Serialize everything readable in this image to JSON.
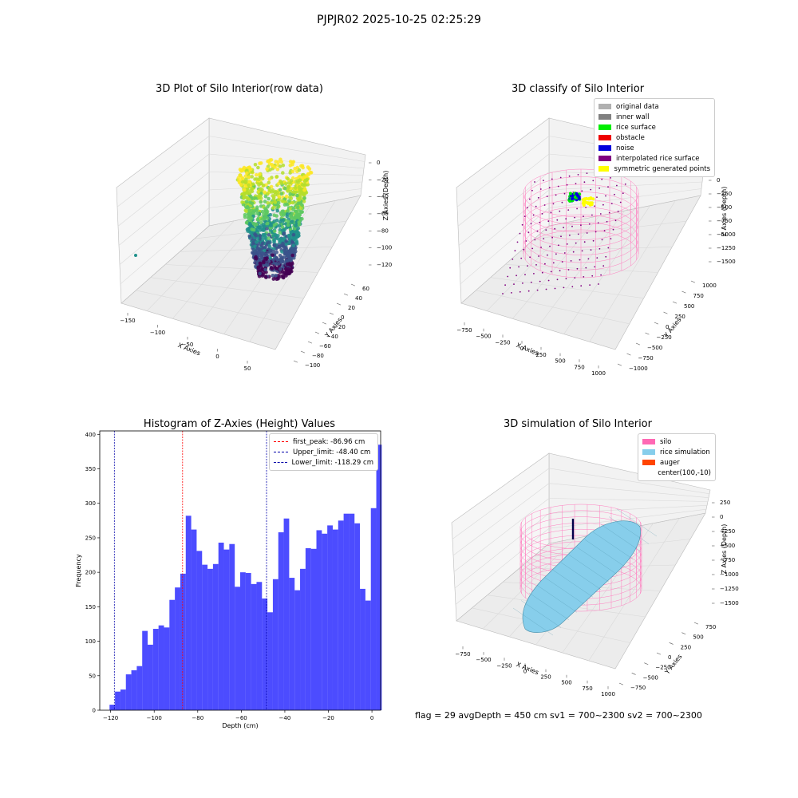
{
  "figure": {
    "suptitle": "PJPJR02 2025-10-25 02:25:29"
  },
  "chart_data": [
    {
      "type": "scatter",
      "title": "3D Plot of Silo Interior(row data)",
      "xlabel": "X Axies",
      "ylabel": "Y Axies",
      "zlabel": "Z Axies (Depth)",
      "xticks": [
        "−150",
        "−100",
        "−50",
        "0",
        "50"
      ],
      "yticks": [
        "−100",
        "−80",
        "−60",
        "−40",
        "−20",
        "0",
        "20",
        "40",
        "60"
      ],
      "zticks": [
        "0",
        "−20",
        "−40",
        "−60",
        "−80",
        "−100",
        "−120"
      ],
      "colormap": "viridis",
      "zlim": [
        -130,
        0
      ]
    },
    {
      "type": "scatter",
      "title": "3D classify of Silo Interior",
      "xlabel": "X Axies",
      "ylabel": "Y Axies",
      "zlabel": "Z Axies (Depth)",
      "xticks": [
        "−750",
        "−500",
        "−250",
        "0",
        "250",
        "500",
        "750",
        "1000"
      ],
      "yticks": [
        "−1000",
        "−750",
        "−500",
        "−250",
        "0",
        "250",
        "500",
        "750",
        "1000"
      ],
      "zticks": [
        "0",
        "−250",
        "−500",
        "−750",
        "−1000",
        "−1250",
        "−1500"
      ],
      "legend": [
        {
          "label": "original data",
          "color": "#b0b0b0"
        },
        {
          "label": "inner wall",
          "color": "#808080"
        },
        {
          "label": "rice surface",
          "color": "#00ee00"
        },
        {
          "label": "obstacle",
          "color": "#ee0000"
        },
        {
          "label": "noise",
          "color": "#0000dd"
        },
        {
          "label": "interpolated rice surface",
          "color": "#800080"
        },
        {
          "label": "symmetric generated points",
          "color": "#ffff00"
        }
      ]
    },
    {
      "type": "bar",
      "title": "Histogram of Z-Axies (Height) Values",
      "xlabel": "Depth (cm)",
      "ylabel": "Frequency",
      "xlim": [
        -125,
        4
      ],
      "ylim": [
        0,
        405
      ],
      "xticks": [
        -120,
        -100,
        -80,
        -60,
        -40,
        -20,
        0
      ],
      "yticks": [
        0,
        50,
        100,
        150,
        200,
        250,
        300,
        350,
        400
      ],
      "bin_start": -120.5,
      "bin_width": 2.5,
      "values": [
        8,
        27,
        30,
        52,
        58,
        64,
        115,
        95,
        118,
        123,
        120,
        160,
        178,
        198,
        282,
        262,
        231,
        211,
        205,
        212,
        243,
        233,
        241,
        179,
        200,
        199,
        183,
        186,
        162,
        142,
        190,
        258,
        278,
        192,
        174,
        205,
        235,
        234,
        261,
        256,
        268,
        262,
        275,
        285,
        285,
        271,
        176,
        159,
        293,
        385
      ],
      "bar_color": "#0000ff",
      "lines": [
        {
          "label": "first_peak: -86.96 cm",
          "value": -86.96,
          "color": "#ff0000"
        },
        {
          "label": "Upper_limit: -48.40 cm",
          "value": -48.4,
          "color": "#0000aa"
        },
        {
          "label": "Lower_limit: -118.29 cm",
          "value": -118.29,
          "color": "#0000aa"
        }
      ]
    },
    {
      "type": "scatter",
      "title": "3D simulation of Silo Interior",
      "xlabel": "X Axies",
      "ylabel": "Y Axies",
      "zlabel": "Z Axies (Depth)",
      "xticks": [
        "−750",
        "−500",
        "−250",
        "0",
        "250",
        "500",
        "750",
        "1000"
      ],
      "yticks": [
        "−750",
        "−500",
        "−250",
        "0",
        "250",
        "500",
        "750"
      ],
      "zticks": [
        "250",
        "0",
        "−250",
        "−500",
        "−750",
        "−1000",
        "−1250",
        "−1500"
      ],
      "legend": [
        {
          "label": "silo",
          "color": "#ff69b4"
        },
        {
          "label": "rice simulation",
          "color": "#87ceeb"
        },
        {
          "label": "auger",
          "color": "#ff4500"
        },
        {
          "label": "center(100,-10)",
          "color": ""
        }
      ]
    }
  ],
  "footer": "flag = 29  avgDepth = 450 cm  sv1 = 700~2300  sv2 = 700~2300"
}
